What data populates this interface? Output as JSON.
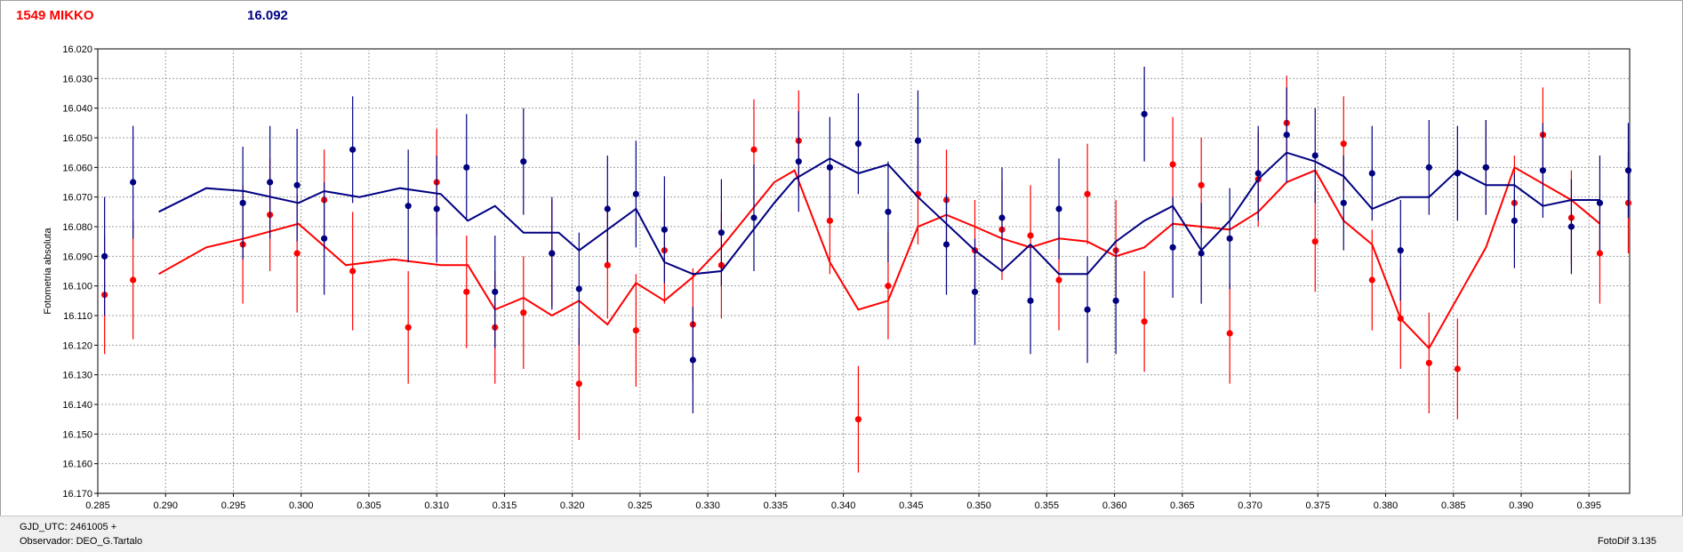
{
  "header": {
    "object_name": "1549 MIKKO",
    "reference_value": "16.092"
  },
  "footer": {
    "gjd_label": "GJD_UTC: 2461005 +",
    "observer_label": "Observador: DEO_G.Tartalo",
    "software_label": "FotoDif 3.135"
  },
  "colors": {
    "red_series": "#ff0000",
    "blue_series": "#000080",
    "grid": "#a0a0a0",
    "plot_bg": "#ffffff"
  },
  "chart_data": {
    "type": "scatter",
    "title": "",
    "xlabel": "",
    "ylabel": "Fotometria absoluta",
    "xlim": [
      0.285,
      0.398
    ],
    "ylim": [
      16.02,
      16.17
    ],
    "y_inverted": true,
    "grid": true,
    "x_ticks": [
      "0.285",
      "0.290",
      "0.295",
      "0.300",
      "0.305",
      "0.310",
      "0.315",
      "0.320",
      "0.325",
      "0.330",
      "0.335",
      "0.340",
      "0.345",
      "0.350",
      "0.355",
      "0.360",
      "0.365",
      "0.370",
      "0.375",
      "0.380",
      "0.385",
      "0.390",
      "0.395"
    ],
    "y_ticks": [
      "16.020",
      "16.030",
      "16.040",
      "16.050",
      "16.060",
      "16.070",
      "16.080",
      "16.090",
      "16.100",
      "16.110",
      "16.120",
      "16.130",
      "16.140",
      "16.150",
      "16.160",
      "16.170"
    ],
    "series": [
      {
        "color": "#ff0000",
        "points": [
          {
            "x": 0.2855,
            "y": 16.103,
            "err": 0.02
          },
          {
            "x": 0.2876,
            "y": 16.098,
            "err": 0.02
          },
          {
            "x": 0.2957,
            "y": 16.086,
            "err": 0.02
          },
          {
            "x": 0.2977,
            "y": 16.076,
            "err": 0.019
          },
          {
            "x": 0.2997,
            "y": 16.089,
            "err": 0.02
          },
          {
            "x": 0.3017,
            "y": 16.071,
            "err": 0.017
          },
          {
            "x": 0.3038,
            "y": 16.095,
            "err": 0.02
          },
          {
            "x": 0.3079,
            "y": 16.114,
            "err": 0.019
          },
          {
            "x": 0.31,
            "y": 16.065,
            "err": 0.018
          },
          {
            "x": 0.3122,
            "y": 16.102,
            "err": 0.019
          },
          {
            "x": 0.3143,
            "y": 16.114,
            "err": 0.019
          },
          {
            "x": 0.3164,
            "y": 16.109,
            "err": 0.019
          },
          {
            "x": 0.3185,
            "y": 16.089,
            "err": 0.018
          },
          {
            "x": 0.3205,
            "y": 16.133,
            "err": 0.019
          },
          {
            "x": 0.3226,
            "y": 16.093,
            "err": 0.018
          },
          {
            "x": 0.3247,
            "y": 16.115,
            "err": 0.019
          },
          {
            "x": 0.3268,
            "y": 16.088,
            "err": 0.018
          },
          {
            "x": 0.3289,
            "y": 16.113,
            "err": 0.019
          },
          {
            "x": 0.331,
            "y": 16.093,
            "err": 0.018
          },
          {
            "x": 0.3334,
            "y": 16.054,
            "err": 0.017
          },
          {
            "x": 0.3367,
            "y": 16.051,
            "err": 0.017
          },
          {
            "x": 0.339,
            "y": 16.078,
            "err": 0.018
          },
          {
            "x": 0.3411,
            "y": 16.145,
            "err": 0.018
          },
          {
            "x": 0.3433,
            "y": 16.1,
            "err": 0.018
          },
          {
            "x": 0.3455,
            "y": 16.069,
            "err": 0.017
          },
          {
            "x": 0.3476,
            "y": 16.071,
            "err": 0.017
          },
          {
            "x": 0.3497,
            "y": 16.088,
            "err": 0.017
          },
          {
            "x": 0.3517,
            "y": 16.081,
            "err": 0.017
          },
          {
            "x": 0.3538,
            "y": 16.083,
            "err": 0.017
          },
          {
            "x": 0.3559,
            "y": 16.098,
            "err": 0.017
          },
          {
            "x": 0.358,
            "y": 16.069,
            "err": 0.017
          },
          {
            "x": 0.3601,
            "y": 16.088,
            "err": 0.017
          },
          {
            "x": 0.3622,
            "y": 16.112,
            "err": 0.017
          },
          {
            "x": 0.3643,
            "y": 16.059,
            "err": 0.016
          },
          {
            "x": 0.3664,
            "y": 16.066,
            "err": 0.016
          },
          {
            "x": 0.3685,
            "y": 16.116,
            "err": 0.017
          },
          {
            "x": 0.3706,
            "y": 16.064,
            "err": 0.016
          },
          {
            "x": 0.3727,
            "y": 16.045,
            "err": 0.016
          },
          {
            "x": 0.3748,
            "y": 16.085,
            "err": 0.017
          },
          {
            "x": 0.3769,
            "y": 16.052,
            "err": 0.016
          },
          {
            "x": 0.379,
            "y": 16.098,
            "err": 0.017
          },
          {
            "x": 0.3811,
            "y": 16.111,
            "err": 0.017
          },
          {
            "x": 0.3832,
            "y": 16.126,
            "err": 0.017
          },
          {
            "x": 0.3853,
            "y": 16.128,
            "err": 0.017
          },
          {
            "x": 0.3874,
            "y": 16.06,
            "err": 0.016
          },
          {
            "x": 0.3895,
            "y": 16.072,
            "err": 0.016
          },
          {
            "x": 0.3916,
            "y": 16.049,
            "err": 0.016
          },
          {
            "x": 0.3937,
            "y": 16.077,
            "err": 0.016
          },
          {
            "x": 0.3958,
            "y": 16.089,
            "err": 0.017
          },
          {
            "x": 0.3979,
            "y": 16.072,
            "err": 0.017
          }
        ],
        "line": [
          [
            0.2895,
            16.096
          ],
          [
            0.293,
            16.087
          ],
          [
            0.2958,
            16.084
          ],
          [
            0.2998,
            16.079
          ],
          [
            0.3033,
            16.093
          ],
          [
            0.3068,
            16.091
          ],
          [
            0.3103,
            16.093
          ],
          [
            0.3123,
            16.093
          ],
          [
            0.3143,
            16.108
          ],
          [
            0.3164,
            16.104
          ],
          [
            0.3185,
            16.11
          ],
          [
            0.3205,
            16.105
          ],
          [
            0.3226,
            16.113
          ],
          [
            0.3247,
            16.099
          ],
          [
            0.3268,
            16.105
          ],
          [
            0.3289,
            16.097
          ],
          [
            0.331,
            16.087
          ],
          [
            0.3349,
            16.065
          ],
          [
            0.3364,
            16.061
          ],
          [
            0.339,
            16.092
          ],
          [
            0.3411,
            16.108
          ],
          [
            0.3433,
            16.105
          ],
          [
            0.3455,
            16.08
          ],
          [
            0.3476,
            16.076
          ],
          [
            0.3497,
            16.08
          ],
          [
            0.3517,
            16.084
          ],
          [
            0.3538,
            16.087
          ],
          [
            0.3559,
            16.084
          ],
          [
            0.358,
            16.085
          ],
          [
            0.3601,
            16.09
          ],
          [
            0.3622,
            16.087
          ],
          [
            0.3643,
            16.079
          ],
          [
            0.3664,
            16.08
          ],
          [
            0.3685,
            16.081
          ],
          [
            0.3706,
            16.075
          ],
          [
            0.3727,
            16.065
          ],
          [
            0.3748,
            16.061
          ],
          [
            0.3769,
            16.078
          ],
          [
            0.379,
            16.086
          ],
          [
            0.3811,
            16.111
          ],
          [
            0.3832,
            16.121
          ],
          [
            0.3874,
            16.087
          ],
          [
            0.3895,
            16.06
          ],
          [
            0.3937,
            16.071
          ],
          [
            0.3958,
            16.079
          ]
        ]
      },
      {
        "color": "#000080",
        "points": [
          {
            "x": 0.2855,
            "y": 16.09,
            "err": 0.02
          },
          {
            "x": 0.2876,
            "y": 16.065,
            "err": 0.019
          },
          {
            "x": 0.2957,
            "y": 16.072,
            "err": 0.019
          },
          {
            "x": 0.2977,
            "y": 16.065,
            "err": 0.019
          },
          {
            "x": 0.2997,
            "y": 16.066,
            "err": 0.019
          },
          {
            "x": 0.3017,
            "y": 16.084,
            "err": 0.019
          },
          {
            "x": 0.3038,
            "y": 16.054,
            "err": 0.018
          },
          {
            "x": 0.3079,
            "y": 16.073,
            "err": 0.019
          },
          {
            "x": 0.31,
            "y": 16.074,
            "err": 0.018
          },
          {
            "x": 0.3122,
            "y": 16.06,
            "err": 0.018
          },
          {
            "x": 0.3143,
            "y": 16.102,
            "err": 0.019
          },
          {
            "x": 0.3164,
            "y": 16.058,
            "err": 0.018
          },
          {
            "x": 0.3185,
            "y": 16.089,
            "err": 0.019
          },
          {
            "x": 0.3205,
            "y": 16.101,
            "err": 0.019
          },
          {
            "x": 0.3226,
            "y": 16.074,
            "err": 0.018
          },
          {
            "x": 0.3247,
            "y": 16.069,
            "err": 0.018
          },
          {
            "x": 0.3268,
            "y": 16.081,
            "err": 0.018
          },
          {
            "x": 0.3289,
            "y": 16.125,
            "err": 0.018
          },
          {
            "x": 0.331,
            "y": 16.082,
            "err": 0.018
          },
          {
            "x": 0.3334,
            "y": 16.077,
            "err": 0.018
          },
          {
            "x": 0.3367,
            "y": 16.058,
            "err": 0.017
          },
          {
            "x": 0.339,
            "y": 16.06,
            "err": 0.017
          },
          {
            "x": 0.3411,
            "y": 16.052,
            "err": 0.017
          },
          {
            "x": 0.3433,
            "y": 16.075,
            "err": 0.017
          },
          {
            "x": 0.3455,
            "y": 16.051,
            "err": 0.017
          },
          {
            "x": 0.3476,
            "y": 16.086,
            "err": 0.017
          },
          {
            "x": 0.3497,
            "y": 16.102,
            "err": 0.018
          },
          {
            "x": 0.3517,
            "y": 16.077,
            "err": 0.017
          },
          {
            "x": 0.3538,
            "y": 16.105,
            "err": 0.018
          },
          {
            "x": 0.3559,
            "y": 16.074,
            "err": 0.017
          },
          {
            "x": 0.358,
            "y": 16.108,
            "err": 0.018
          },
          {
            "x": 0.3601,
            "y": 16.105,
            "err": 0.018
          },
          {
            "x": 0.3622,
            "y": 16.042,
            "err": 0.016
          },
          {
            "x": 0.3643,
            "y": 16.087,
            "err": 0.017
          },
          {
            "x": 0.3664,
            "y": 16.089,
            "err": 0.017
          },
          {
            "x": 0.3685,
            "y": 16.084,
            "err": 0.017
          },
          {
            "x": 0.3706,
            "y": 16.062,
            "err": 0.016
          },
          {
            "x": 0.3727,
            "y": 16.049,
            "err": 0.016
          },
          {
            "x": 0.3748,
            "y": 16.056,
            "err": 0.016
          },
          {
            "x": 0.3769,
            "y": 16.072,
            "err": 0.016
          },
          {
            "x": 0.379,
            "y": 16.062,
            "err": 0.016
          },
          {
            "x": 0.3811,
            "y": 16.088,
            "err": 0.017
          },
          {
            "x": 0.3832,
            "y": 16.06,
            "err": 0.016
          },
          {
            "x": 0.3853,
            "y": 16.062,
            "err": 0.016
          },
          {
            "x": 0.3874,
            "y": 16.06,
            "err": 0.016
          },
          {
            "x": 0.3895,
            "y": 16.078,
            "err": 0.016
          },
          {
            "x": 0.3916,
            "y": 16.061,
            "err": 0.016
          },
          {
            "x": 0.3937,
            "y": 16.08,
            "err": 0.016
          },
          {
            "x": 0.3958,
            "y": 16.072,
            "err": 0.016
          },
          {
            "x": 0.3979,
            "y": 16.061,
            "err": 0.016
          }
        ],
        "line": [
          [
            0.2895,
            16.075
          ],
          [
            0.293,
            16.067
          ],
          [
            0.2958,
            16.068
          ],
          [
            0.2998,
            16.072
          ],
          [
            0.3017,
            16.068
          ],
          [
            0.3043,
            16.07
          ],
          [
            0.3073,
            16.067
          ],
          [
            0.3103,
            16.069
          ],
          [
            0.3123,
            16.078
          ],
          [
            0.3143,
            16.073
          ],
          [
            0.3164,
            16.082
          ],
          [
            0.319,
            16.082
          ],
          [
            0.3205,
            16.088
          ],
          [
            0.3226,
            16.081
          ],
          [
            0.3247,
            16.074
          ],
          [
            0.3268,
            16.092
          ],
          [
            0.3289,
            16.096
          ],
          [
            0.331,
            16.095
          ],
          [
            0.3349,
            16.072
          ],
          [
            0.3364,
            16.064
          ],
          [
            0.339,
            16.057
          ],
          [
            0.3411,
            16.062
          ],
          [
            0.3433,
            16.059
          ],
          [
            0.3455,
            16.07
          ],
          [
            0.3476,
            16.079
          ],
          [
            0.3497,
            16.088
          ],
          [
            0.3517,
            16.095
          ],
          [
            0.3538,
            16.086
          ],
          [
            0.3559,
            16.096
          ],
          [
            0.358,
            16.096
          ],
          [
            0.3601,
            16.085
          ],
          [
            0.3622,
            16.078
          ],
          [
            0.3643,
            16.073
          ],
          [
            0.3664,
            16.088
          ],
          [
            0.3685,
            16.078
          ],
          [
            0.3706,
            16.064
          ],
          [
            0.3727,
            16.055
          ],
          [
            0.3748,
            16.058
          ],
          [
            0.3769,
            16.063
          ],
          [
            0.379,
            16.074
          ],
          [
            0.3811,
            16.07
          ],
          [
            0.3832,
            16.07
          ],
          [
            0.3853,
            16.061
          ],
          [
            0.3874,
            16.066
          ],
          [
            0.3895,
            16.066
          ],
          [
            0.3916,
            16.073
          ],
          [
            0.3937,
            16.071
          ],
          [
            0.3958,
            16.071
          ]
        ]
      }
    ]
  }
}
